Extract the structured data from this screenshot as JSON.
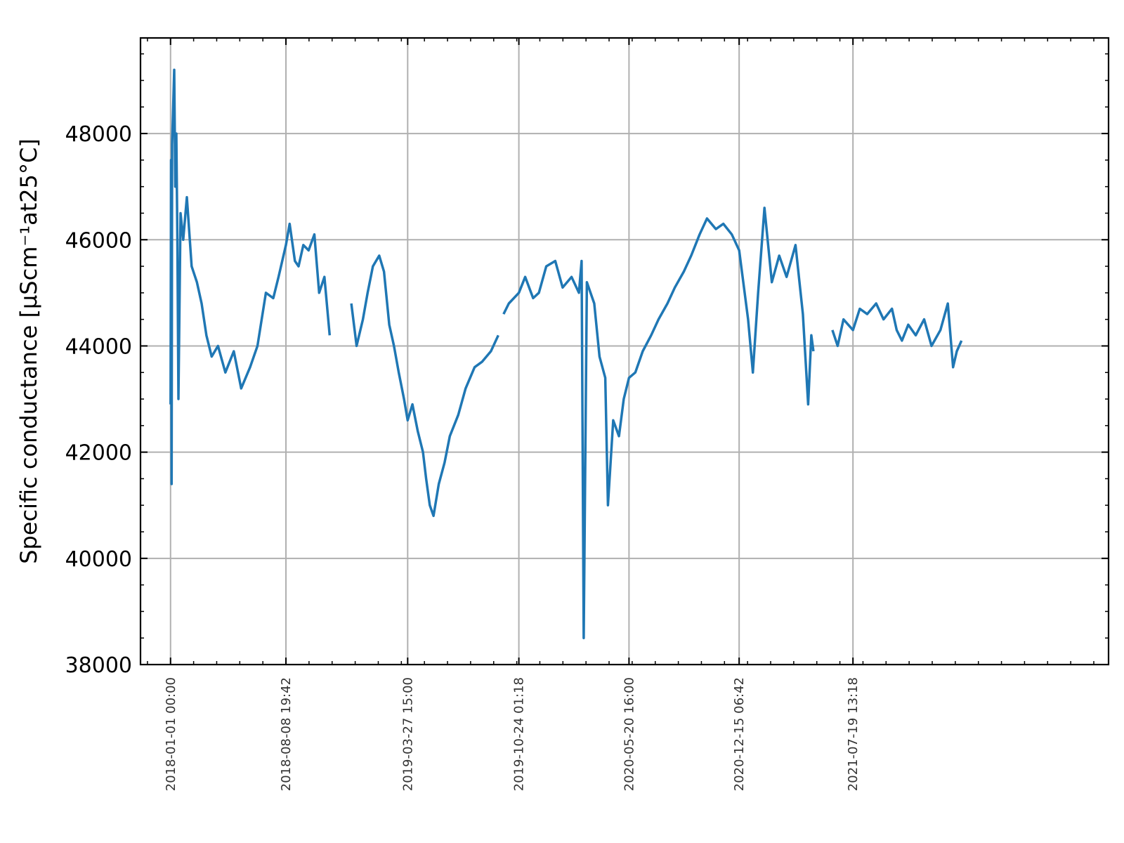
{
  "chart_data": {
    "type": "line",
    "title": "",
    "xlabel": "",
    "ylabel": "Specific conductance [μScm⁻¹at25°C]",
    "x_ticks": [
      "2018-01-01 00:00",
      "2018-08-08 19:42",
      "2019-03-27 15:00",
      "2019-10-24 01:18",
      "2020-05-20 16:00",
      "2020-12-15 06:42",
      "2021-07-19 13:18"
    ],
    "y_ticks": [
      38000,
      40000,
      42000,
      44000,
      46000,
      48000
    ],
    "xlim": [
      "2017-11-05",
      "2022-11-16"
    ],
    "ylim": [
      38000,
      49800
    ],
    "grid": true,
    "color": "#1f77b4",
    "series": [
      {
        "segments": [
          [
            [
              "2018-01-01",
              42900
            ],
            [
              "2018-01-02",
              47500
            ],
            [
              "2018-01-03",
              41400
            ],
            [
              "2018-01-04",
              47800
            ],
            [
              "2018-01-06",
              48500
            ],
            [
              "2018-01-08",
              49200
            ],
            [
              "2018-01-10",
              47000
            ],
            [
              "2018-01-12",
              48000
            ],
            [
              "2018-01-14",
              46000
            ],
            [
              "2018-01-16",
              43000
            ],
            [
              "2018-01-20",
              46500
            ],
            [
              "2018-01-25",
              46000
            ],
            [
              "2018-02-01",
              46800
            ],
            [
              "2018-02-10",
              45500
            ],
            [
              "2018-02-20",
              45200
            ],
            [
              "2018-03-01",
              44800
            ],
            [
              "2018-03-10",
              44200
            ],
            [
              "2018-03-20",
              43800
            ],
            [
              "2018-04-01",
              44000
            ],
            [
              "2018-04-15",
              43500
            ],
            [
              "2018-05-01",
              43900
            ],
            [
              "2018-05-15",
              43200
            ],
            [
              "2018-06-01",
              43600
            ],
            [
              "2018-06-15",
              44000
            ],
            [
              "2018-07-01",
              45000
            ],
            [
              "2018-07-15",
              44900
            ],
            [
              "2018-07-25",
              45300
            ],
            [
              "2018-08-08",
              45900
            ],
            [
              "2018-08-15",
              46300
            ],
            [
              "2018-08-25",
              45600
            ],
            [
              "2018-09-01",
              45500
            ],
            [
              "2018-09-10",
              45900
            ],
            [
              "2018-09-20",
              45800
            ],
            [
              "2018-10-01",
              46100
            ],
            [
              "2018-10-10",
              45000
            ],
            [
              "2018-10-20",
              45300
            ],
            [
              "2018-10-30",
              44200
            ]
          ],
          [
            [
              "2018-12-10",
              44800
            ],
            [
              "2018-12-20",
              44000
            ],
            [
              "2019-01-01",
              44500
            ],
            [
              "2019-01-10",
              45000
            ],
            [
              "2019-01-20",
              45500
            ],
            [
              "2019-02-01",
              45700
            ],
            [
              "2019-02-10",
              45400
            ],
            [
              "2019-02-20",
              44400
            ],
            [
              "2019-03-01",
              44000
            ],
            [
              "2019-03-10",
              43500
            ],
            [
              "2019-03-20",
              43000
            ],
            [
              "2019-03-27",
              42600
            ],
            [
              "2019-04-05",
              42900
            ],
            [
              "2019-04-15",
              42400
            ],
            [
              "2019-04-25",
              42000
            ],
            [
              "2019-05-01",
              41500
            ],
            [
              "2019-05-08",
              41000
            ],
            [
              "2019-05-15",
              40800
            ],
            [
              "2019-05-25",
              41400
            ],
            [
              "2019-06-05",
              41800
            ],
            [
              "2019-06-15",
              42300
            ],
            [
              "2019-07-01",
              42700
            ],
            [
              "2019-07-15",
              43200
            ],
            [
              "2019-08-01",
              43600
            ],
            [
              "2019-08-15",
              43700
            ],
            [
              "2019-09-01",
              43900
            ],
            [
              "2019-09-15",
              44200
            ]
          ],
          [
            [
              "2019-09-25",
              44600
            ],
            [
              "2019-10-05",
              44800
            ],
            [
              "2019-10-24",
              45000
            ],
            [
              "2019-11-05",
              45300
            ],
            [
              "2019-11-20",
              44900
            ],
            [
              "2019-12-01",
              45000
            ],
            [
              "2019-12-15",
              45500
            ],
            [
              "2020-01-01",
              45600
            ],
            [
              "2020-01-15",
              45100
            ],
            [
              "2020-02-01",
              45300
            ],
            [
              "2020-02-15",
              45000
            ],
            [
              "2020-02-20",
              45600
            ],
            [
              "2020-02-24",
              38500
            ],
            [
              "2020-03-01",
              45200
            ],
            [
              "2020-03-15",
              44800
            ],
            [
              "2020-03-25",
              43800
            ],
            [
              "2020-04-05",
              43400
            ],
            [
              "2020-04-10",
              41000
            ],
            [
              "2020-04-20",
              42600
            ],
            [
              "2020-05-01",
              42300
            ],
            [
              "2020-05-10",
              43000
            ],
            [
              "2020-05-20",
              43400
            ],
            [
              "2020-06-01",
              43500
            ],
            [
              "2020-06-15",
              43900
            ],
            [
              "2020-07-01",
              44200
            ],
            [
              "2020-07-15",
              44500
            ],
            [
              "2020-08-01",
              44800
            ],
            [
              "2020-08-15",
              45100
            ],
            [
              "2020-09-01",
              45400
            ],
            [
              "2020-09-15",
              45700
            ],
            [
              "2020-10-01",
              46100
            ],
            [
              "2020-10-15",
              46400
            ],
            [
              "2020-11-01",
              46200
            ],
            [
              "2020-11-15",
              46300
            ],
            [
              "2020-12-01",
              46100
            ],
            [
              "2020-12-15",
              45800
            ],
            [
              "2021-01-01",
              44500
            ],
            [
              "2021-01-10",
              43500
            ],
            [
              "2021-01-20",
              45000
            ],
            [
              "2021-02-01",
              46600
            ],
            [
              "2021-02-15",
              45200
            ],
            [
              "2021-03-01",
              45700
            ],
            [
              "2021-03-15",
              45300
            ],
            [
              "2021-04-01",
              45900
            ],
            [
              "2021-04-15",
              44600
            ],
            [
              "2021-04-25",
              42900
            ],
            [
              "2021-05-01",
              44200
            ],
            [
              "2021-05-05",
              43900
            ]
          ],
          [
            [
              "2021-06-10",
              44300
            ],
            [
              "2021-06-20",
              44000
            ],
            [
              "2021-07-01",
              44500
            ],
            [
              "2021-07-10",
              44400
            ],
            [
              "2021-07-19",
              44300
            ],
            [
              "2021-08-01",
              44700
            ],
            [
              "2021-08-15",
              44600
            ],
            [
              "2021-09-01",
              44800
            ],
            [
              "2021-09-15",
              44500
            ],
            [
              "2021-10-01",
              44700
            ],
            [
              "2021-10-10",
              44300
            ],
            [
              "2021-10-20",
              44100
            ],
            [
              "2021-11-01",
              44400
            ],
            [
              "2021-11-15",
              44200
            ],
            [
              "2021-12-01",
              44500
            ],
            [
              "2021-12-15",
              44000
            ],
            [
              "2022-01-01",
              44300
            ],
            [
              "2022-01-15",
              44800
            ],
            [
              "2022-01-25",
              43600
            ],
            [
              "2022-02-01",
              43900
            ],
            [
              "2022-02-10",
              44100
            ]
          ]
        ]
      }
    ]
  }
}
